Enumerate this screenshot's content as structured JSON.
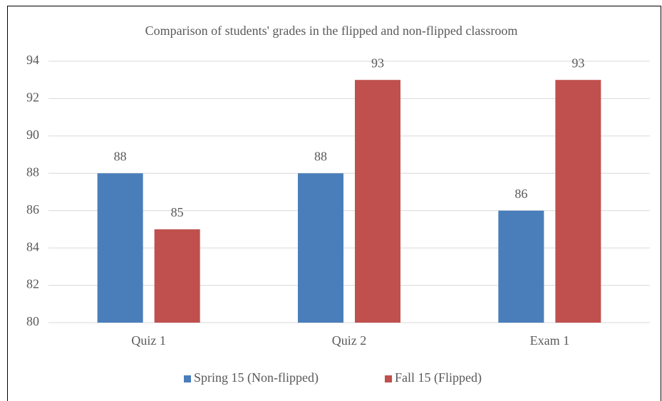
{
  "chart_data": {
    "type": "bar",
    "title": "Comparison of students' grades in the flipped and non-flipped classroom",
    "categories": [
      "Quiz 1",
      "Quiz 2",
      "Exam 1"
    ],
    "series": [
      {
        "name": "Spring 15 (Non-flipped)",
        "color": "#4a7ebb",
        "values": [
          88,
          88,
          86
        ]
      },
      {
        "name": "Fall 15 (Flipped)",
        "color": "#c0504d",
        "values": [
          85,
          93,
          93
        ]
      }
    ],
    "ylim": [
      80,
      94
    ],
    "yticks": [
      80,
      82,
      84,
      86,
      88,
      90,
      92,
      94
    ],
    "grid": true,
    "legend": "bottom"
  }
}
